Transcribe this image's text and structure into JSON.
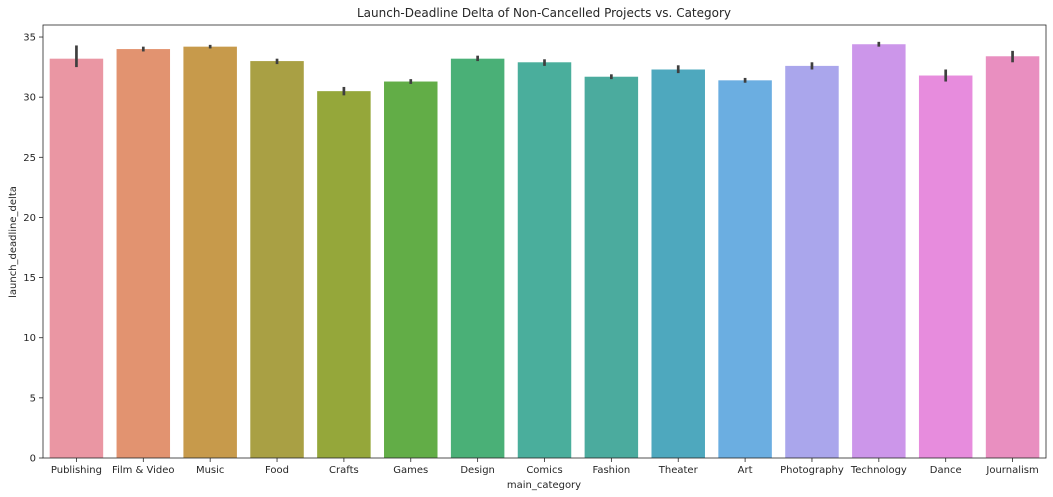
{
  "chart_data": {
    "type": "bar",
    "title": "Launch-Deadline Delta of Non-Cancelled Projects vs. Category",
    "xlabel": "main_category",
    "ylabel": "launch_deadline_delta",
    "ylim": [
      0,
      36
    ],
    "yticks": [
      0,
      5,
      10,
      15,
      20,
      25,
      30,
      35
    ],
    "grid": false,
    "categories": [
      "Publishing",
      "Film & Video",
      "Music",
      "Food",
      "Crafts",
      "Games",
      "Design",
      "Comics",
      "Fashion",
      "Theater",
      "Art",
      "Photography",
      "Technology",
      "Dance",
      "Journalism"
    ],
    "values": [
      33.2,
      34.0,
      34.2,
      33.0,
      30.5,
      31.3,
      33.2,
      32.9,
      31.7,
      32.3,
      31.4,
      32.6,
      34.4,
      31.8,
      33.4
    ],
    "error_low": [
      32.5,
      33.8,
      34.05,
      32.75,
      30.15,
      31.1,
      33.0,
      32.6,
      31.5,
      32.0,
      31.2,
      32.3,
      34.2,
      31.3,
      32.9
    ],
    "error_high": [
      34.3,
      34.2,
      34.35,
      33.2,
      30.85,
      31.5,
      33.45,
      33.15,
      31.9,
      32.65,
      31.6,
      32.9,
      34.6,
      32.3,
      33.85
    ],
    "colors": [
      "#ea96a3",
      "#e29370",
      "#c79a4b",
      "#a9a044",
      "#95a73a",
      "#62ad47",
      "#4ab077",
      "#4aae9c",
      "#4bab9e",
      "#4ea8be",
      "#6baee1",
      "#aaa6ec",
      "#cc96ea",
      "#e78cdd",
      "#e98fc0"
    ],
    "error_color": "#3f3f3f"
  }
}
